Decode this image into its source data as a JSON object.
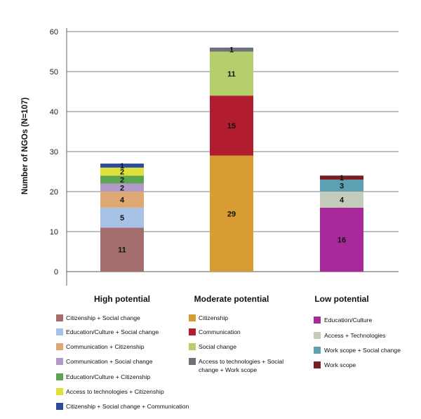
{
  "chart_data": {
    "type": "bar",
    "stacked": true,
    "ylabel": "Number of NGOs (N=107)",
    "ylim": [
      0,
      60
    ],
    "yticks": [
      0,
      10,
      20,
      30,
      40,
      50,
      60
    ],
    "grid": true,
    "categories": [
      "High potential",
      "Moderate potential",
      "Low potential"
    ],
    "stacks": [
      {
        "category": "High potential",
        "segments": [
          {
            "name": "Citizenship + Social change",
            "value": 11,
            "label": "11",
            "color": "#A36D6D"
          },
          {
            "name": "Education/Culture + Social change",
            "value": 5,
            "label": "5",
            "color": "#A8C1E6"
          },
          {
            "name": "Communication + Citizenship",
            "value": 4,
            "label": "4",
            "color": "#DDA871"
          },
          {
            "name": "Communication + Social change",
            "value": 2,
            "label": "2",
            "color": "#B19AC9"
          },
          {
            "name": "Education/Culture + Citizenship",
            "value": 2,
            "label": "2",
            "color": "#5DA551"
          },
          {
            "name": "Access to technologies + Citizenship",
            "value": 2,
            "label": "2",
            "color": "#DEE039"
          },
          {
            "name": "Citizenship + Social change + Communication",
            "value": 1,
            "label": "1",
            "color": "#2B4A9C"
          }
        ]
      },
      {
        "category": "Moderate potential",
        "segments": [
          {
            "name": "Citizenship",
            "value": 29,
            "label": "29",
            "color": "#D99B33"
          },
          {
            "name": "Communication",
            "value": 15,
            "label": "15",
            "color": "#B11D2E"
          },
          {
            "name": "Social change",
            "value": 11,
            "label": "11",
            "color": "#B4CF6C"
          },
          {
            "name": "Access to technologies + Social change + Work scope",
            "value": 1,
            "label": "1",
            "color": "#6C717A"
          }
        ]
      },
      {
        "category": "Low potential",
        "segments": [
          {
            "name": "Education/Culture",
            "value": 16,
            "label": "16",
            "color": "#A82A9A"
          },
          {
            "name": "Access + Technologies",
            "value": 4,
            "label": "4",
            "color": "#C4CCBB"
          },
          {
            "name": "Work scope + Social change",
            "value": 3,
            "label": "3",
            "color": "#5CA0B4"
          },
          {
            "name": "Work scope",
            "value": 1,
            "label": "1",
            "color": "#7A1D22"
          }
        ]
      }
    ],
    "legend_columns": [
      [
        {
          "label": "Citizenship + Social change",
          "color": "#A36D6D"
        },
        {
          "label": "Education/Culture + Social change",
          "color": "#A8C1E6"
        },
        {
          "label": "Communication + Citizenship",
          "color": "#DDA871"
        },
        {
          "label": "Communication + Social change",
          "color": "#B19AC9"
        },
        {
          "label": "Education/Culture + Citizenship",
          "color": "#5DA551"
        },
        {
          "label": "Access to technologies + Citizenship",
          "color": "#DEE039"
        },
        {
          "label": "Citizenship + Social change + Communication",
          "color": "#2B4A9C"
        }
      ],
      [
        {
          "label": "Citizenship",
          "color": "#D99B33"
        },
        {
          "label": "Communication",
          "color": "#B11D2E"
        },
        {
          "label": "Social change",
          "color": "#B4CF6C"
        },
        {
          "label": "Access to technologies + Social change + Work scope",
          "color": "#6C717A"
        }
      ],
      [
        {
          "label": "Education/Culture",
          "color": "#A82A9A"
        },
        {
          "label": "Access + Technologies",
          "color": "#C4CCBB"
        },
        {
          "label": "Work scope + Social change",
          "color": "#5CA0B4"
        },
        {
          "label": "Work scope",
          "color": "#7A1D22"
        }
      ]
    ]
  }
}
